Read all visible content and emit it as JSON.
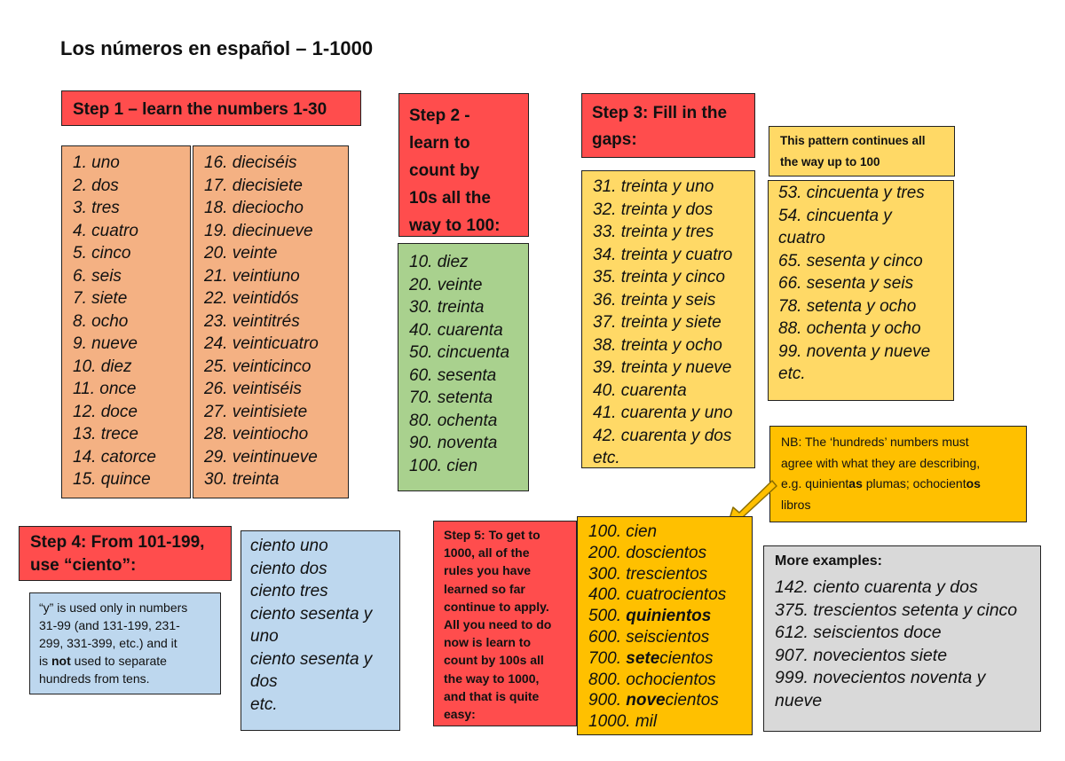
{
  "title": "Los números en español – 1-1000",
  "step1": {
    "heading": "Step 1 – learn the numbers 1-30",
    "col1": [
      "1. uno",
      "2. dos",
      "3. tres",
      "4. cuatro",
      "5. cinco",
      "6. seis",
      "7. siete",
      "8. ocho",
      "9. nueve",
      "10. diez",
      "11. once",
      "12. doce",
      "13. trece",
      "14. catorce",
      "15. quince"
    ],
    "col2": [
      "16. dieciséis",
      "17. diecisiete",
      "18. dieciocho",
      "19. diecinueve",
      "20. veinte",
      "21. veintiuno",
      "22. veintidós",
      "23. veintitrés",
      "24. veinticuatro",
      "25. veinticinco",
      "26. veintiséis",
      "27. veintisiete",
      "28. veintiocho",
      "29. veintinueve",
      "30. treinta"
    ]
  },
  "step2": {
    "heading": [
      "Step 2 -",
      "learn to",
      "count by",
      "10s all the",
      "way to 100:"
    ],
    "items": [
      "10. diez",
      "20. veinte",
      "30. treinta",
      "40. cuarenta",
      "50. cincuenta",
      "60. sesenta",
      "70. setenta",
      "80. ochenta",
      "90. noventa",
      "100. cien"
    ]
  },
  "step3": {
    "heading": [
      "Step 3: Fill in the",
      "gaps:"
    ],
    "items": [
      "31. treinta y uno",
      "32. treinta y dos",
      "33. treinta y tres",
      "34. treinta y cuatro",
      "35. treinta y cinco",
      "36. treinta y seis",
      "37. treinta y siete",
      "38. treinta y ocho",
      "39. treinta y nueve",
      "40. cuarenta",
      "41. cuarenta y uno",
      "42. cuarenta y dos",
      "etc."
    ],
    "pattern_note": [
      "This pattern continues all",
      "the way up to 100"
    ],
    "more": [
      "53. cincuenta y tres",
      "54. cincuenta y",
      "cuatro",
      "65. sesenta y cinco",
      "66. sesenta y seis",
      "78. setenta y ocho",
      "88. ochenta y ocho",
      "99. noventa y nueve",
      "etc."
    ]
  },
  "step4": {
    "heading": [
      "Step 4: From 101-199,",
      "use “ciento”:"
    ],
    "note": {
      "line1": "“y” is used only in numbers",
      "line2": "31-99 (and 131-199, 231-",
      "line3": "299, 331-399, etc.) and it",
      "line4_pre": "is ",
      "line4_bold": "not",
      "line4_post": " used to separate",
      "line5": "hundreds from tens."
    },
    "items": [
      "ciento uno",
      "ciento dos",
      "ciento tres",
      "ciento sesenta y",
      "uno",
      "ciento sesenta y",
      "dos",
      "etc."
    ]
  },
  "step5": {
    "heading": [
      "Step 5: To get to",
      "1000, all of the",
      "rules you have",
      "learned so far",
      "continue to apply.",
      "All you need to do",
      "now is learn to",
      "count by 100s all",
      "the way to 1000,",
      "and that is quite",
      "easy:"
    ],
    "items": [
      {
        "pre": "100. ",
        "bold": "",
        "post": "cien"
      },
      {
        "pre": "200. ",
        "bold": "",
        "post": "doscientos"
      },
      {
        "pre": "300. ",
        "bold": "",
        "post": "trescientos"
      },
      {
        "pre": "400. ",
        "bold": "",
        "post": "cuatrocientos"
      },
      {
        "pre": "500. ",
        "bold": "quinientos",
        "post": ""
      },
      {
        "pre": "600. ",
        "bold": "",
        "post": "seiscientos"
      },
      {
        "pre": "700. ",
        "bold": "sete",
        "post": "cientos"
      },
      {
        "pre": "800. ",
        "bold": "",
        "post": "ochocientos"
      },
      {
        "pre": "900. ",
        "bold": "nove",
        "post": "cientos"
      },
      {
        "pre": "1000. ",
        "bold": "",
        "post": "mil"
      }
    ]
  },
  "nb": {
    "line1": "NB: The ‘hundreds’ numbers must",
    "line2": "agree with what they are describing,",
    "line3_a": "e.g. quinient",
    "line3_b": "as",
    "line3_c": " plumas; ochocient",
    "line3_d": "os",
    "line4": "libros"
  },
  "examples": {
    "heading": "More examples:",
    "items": [
      "142. ciento cuarenta y dos",
      "375. trescientos setenta y cinco",
      "612. seiscientos doce",
      "907. novecientos siete",
      "999. novecientos noventa y",
      "nueve"
    ]
  },
  "colors": {
    "red": "#ff4d4d",
    "orange": "#f4b183",
    "green": "#a9d18e",
    "yellow": "#ffd966",
    "gold": "#ffc000",
    "blue": "#bdd7ee",
    "grey": "#d9d9d9"
  },
  "icons": {
    "arrow": "arrow-down-left-icon"
  }
}
